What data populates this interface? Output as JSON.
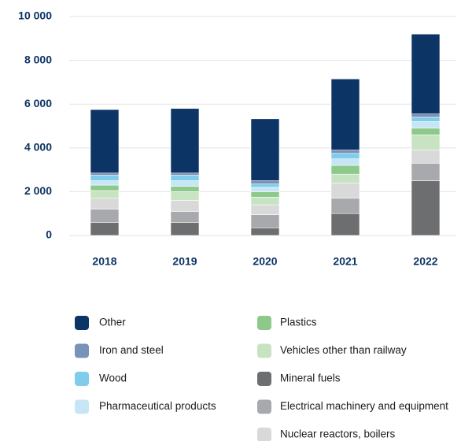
{
  "chart_data": {
    "type": "stacked_bar",
    "categories": [
      "2018",
      "2019",
      "2020",
      "2021",
      "2022"
    ],
    "series": [
      {
        "name": "Other",
        "color": "#0c3464",
        "values": [
          2900,
          2950,
          2830,
          3250,
          3650
        ]
      },
      {
        "name": "Iron and steel",
        "color": "#7892b8",
        "values": [
          100,
          100,
          150,
          150,
          150
        ]
      },
      {
        "name": "Wood",
        "color": "#7fcdea",
        "values": [
          250,
          250,
          150,
          250,
          200
        ]
      },
      {
        "name": "Pharmaceutical products",
        "color": "#c6e6f6",
        "values": [
          200,
          250,
          200,
          300,
          300
        ]
      },
      {
        "name": "Plastics",
        "color": "#8cc98a",
        "values": [
          250,
          250,
          250,
          400,
          300
        ]
      },
      {
        "name": "Vehicles other than railway",
        "color": "#c7e3c1",
        "values": [
          350,
          400,
          350,
          400,
          700
        ]
      },
      {
        "name": "Mineral fuels",
        "color": "#6d6e70",
        "values": [
          600,
          600,
          350,
          1000,
          2500
        ]
      },
      {
        "name": "Electrical machinery and equipment",
        "color": "#a7a9ac",
        "values": [
          600,
          500,
          600,
          700,
          800
        ]
      },
      {
        "name": "Nuclear reactors, boilers",
        "color": "#d9d9d9",
        "values": [
          500,
          500,
          450,
          700,
          600
        ]
      }
    ],
    "ylim": [
      0,
      10000
    ],
    "yticks": [
      0,
      {
        "value": 2000,
        "label": "2 000"
      },
      {
        "value": 4000,
        "label": "4 000"
      },
      {
        "value": 6000,
        "label": "6 000"
      },
      {
        "value": 8000,
        "label": "8 000"
      },
      {
        "value": 10000,
        "label": "10 000"
      }
    ],
    "grid": true
  }
}
